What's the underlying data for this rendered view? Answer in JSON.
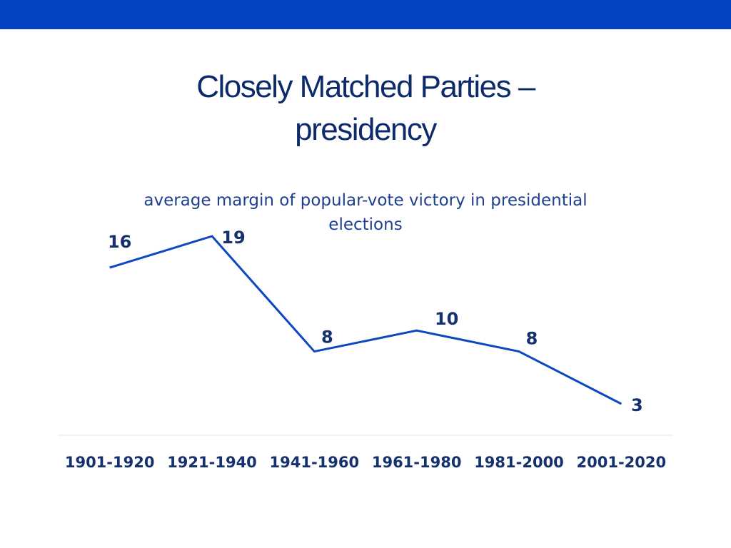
{
  "slide": {
    "title_line1": "Closely Matched Parties –",
    "title_line2": "presidency",
    "accent_color": "#0344c3"
  },
  "chart_data": {
    "type": "line",
    "title": "average margin of popular-vote victory in presidential elections",
    "categories": [
      "1901-1920",
      "1921-1940",
      "1941-1960",
      "1961-1980",
      "1981-2000",
      "2001-2020"
    ],
    "values": [
      16,
      19,
      8,
      10,
      8,
      3
    ],
    "data_labels": [
      "16",
      "19",
      "8",
      "10",
      "8",
      "3"
    ],
    "xlabel": "",
    "ylabel": "",
    "grid": false,
    "line_color": "#0d47c1"
  }
}
